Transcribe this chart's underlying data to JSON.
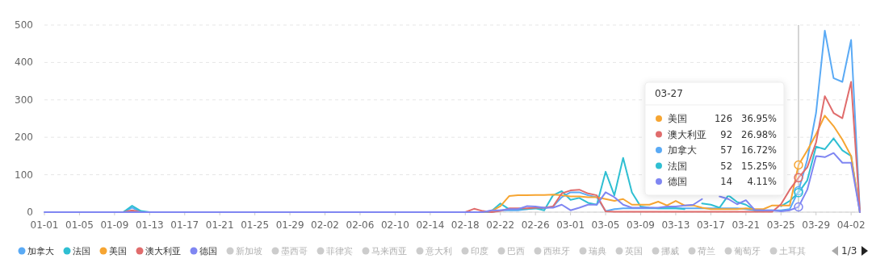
{
  "chart_data": {
    "type": "line",
    "x": [
      "--01-01",
      "--01-02",
      "--01-03",
      "--01-04",
      "--01-05",
      "--01-06",
      "--01-07",
      "--01-08",
      "--01-09",
      "--01-10",
      "--01-11",
      "--01-12",
      "--01-13",
      "--01-14",
      "--01-15",
      "--01-16",
      "--01-17",
      "--01-18",
      "--01-19",
      "--01-20",
      "--01-21",
      "--01-22",
      "--01-23",
      "--01-24",
      "--01-25",
      "--01-26",
      "--01-27",
      "--01-28",
      "--01-29",
      "--01-30",
      "--01-31",
      "--02-01",
      "--02-02",
      "--02-03",
      "--02-04",
      "--02-05",
      "--02-06",
      "--02-07",
      "--02-08",
      "--02-09",
      "--02-10",
      "--02-11",
      "--02-12",
      "--02-13",
      "--02-14",
      "--02-15",
      "--02-16",
      "--02-17",
      "--02-18",
      "--02-19",
      "--02-20",
      "--02-21",
      "--02-22",
      "--02-23",
      "--02-24",
      "--02-25",
      "--02-26",
      "--02-27",
      "--02-28",
      "--02-29",
      "--03-01",
      "--03-02",
      "--03-03",
      "--03-04",
      "--03-05",
      "--03-06",
      "--03-07",
      "--03-08",
      "--03-09",
      "--03-10",
      "--03-11",
      "--03-12",
      "--03-13",
      "--03-14",
      "--03-15",
      "--03-16",
      "--03-17",
      "--03-18",
      "--03-19",
      "--03-20",
      "--03-21",
      "--03-22",
      "--03-23",
      "--03-24",
      "--03-25",
      "--03-26",
      "--03-27",
      "--03-28",
      "--03-29",
      "--03-30",
      "--03-31",
      "--04-01",
      "--04-02",
      "--04-03"
    ],
    "xlim": [
      "--01-01",
      "--04-03"
    ],
    "xticks": [
      {
        "value": "--01-01",
        "label": "01-01"
      },
      {
        "value": "--01-05",
        "label": "01-05"
      },
      {
        "value": "--01-09",
        "label": "01-09"
      },
      {
        "value": "--01-13",
        "label": "01-13"
      },
      {
        "value": "--01-17",
        "label": "01-17"
      },
      {
        "value": "--01-21",
        "label": "01-21"
      },
      {
        "value": "--01-25",
        "label": "01-25"
      },
      {
        "value": "--01-29",
        "label": "01-29"
      },
      {
        "value": "--02-02",
        "label": "02-02"
      },
      {
        "value": "--02-06",
        "label": "02-06"
      },
      {
        "value": "--02-10",
        "label": "02-10"
      },
      {
        "value": "--02-14",
        "label": "02-14"
      },
      {
        "value": "--02-18",
        "label": "02-18"
      },
      {
        "value": "--02-22",
        "label": "02-22"
      },
      {
        "value": "--02-26",
        "label": "02-26"
      },
      {
        "value": "--03-01",
        "label": "03-01"
      },
      {
        "value": "--03-05",
        "label": "03-05"
      },
      {
        "value": "--03-09",
        "label": "03-09"
      },
      {
        "value": "--03-13",
        "label": "03-13"
      },
      {
        "value": "--03-17",
        "label": "03-17"
      },
      {
        "value": "--03-21",
        "label": "03-21"
      },
      {
        "value": "--03-25",
        "label": "03-25"
      },
      {
        "value": "--03-29",
        "label": "03-29"
      },
      {
        "value": "--04-02",
        "label": "04-02"
      }
    ],
    "series": [
      {
        "name": "加拿大",
        "color": "#5aaaf5",
        "values": [
          null,
          null,
          null,
          null,
          null,
          null,
          null,
          null,
          null,
          0,
          12,
          0,
          0,
          null,
          null,
          null,
          null,
          null,
          null,
          null,
          null,
          null,
          null,
          null,
          null,
          null,
          null,
          null,
          null,
          null,
          null,
          null,
          null,
          null,
          null,
          null,
          null,
          null,
          null,
          null,
          null,
          null,
          null,
          null,
          null,
          null,
          null,
          null,
          0,
          0,
          0,
          0,
          5,
          5,
          5,
          8,
          10,
          10,
          15,
          40,
          53,
          53,
          45,
          40,
          3,
          8,
          10,
          10,
          10,
          10,
          10,
          10,
          10,
          10,
          10,
          10,
          10,
          10,
          10,
          10,
          8,
          5,
          5,
          5,
          5,
          8,
          57,
          140,
          265,
          485,
          358,
          348,
          460,
          0
        ]
      },
      {
        "name": "法国",
        "color": "#2fbfd2",
        "values": [
          null,
          null,
          null,
          null,
          null,
          null,
          null,
          null,
          null,
          0,
          17,
          3,
          0,
          null,
          null,
          null,
          null,
          null,
          null,
          null,
          null,
          null,
          null,
          null,
          null,
          null,
          null,
          null,
          null,
          null,
          null,
          null,
          null,
          null,
          null,
          null,
          null,
          null,
          null,
          null,
          null,
          null,
          null,
          null,
          null,
          null,
          null,
          null,
          0,
          0,
          0,
          3,
          23,
          8,
          8,
          8,
          10,
          5,
          45,
          56,
          33,
          38,
          25,
          20,
          108,
          45,
          145,
          53,
          15,
          12,
          10,
          10,
          10,
          8,
          null,
          23,
          20,
          12,
          45,
          27,
          20,
          5,
          5,
          null,
          16,
          30,
          52,
          85,
          175,
          168,
          197,
          165,
          150,
          0
        ]
      },
      {
        "name": "美国",
        "color": "#f6a532",
        "values": [
          null,
          null,
          null,
          null,
          null,
          null,
          null,
          null,
          null,
          null,
          null,
          null,
          null,
          null,
          null,
          null,
          null,
          null,
          null,
          null,
          null,
          null,
          null,
          null,
          null,
          null,
          null,
          null,
          null,
          null,
          null,
          null,
          null,
          null,
          null,
          null,
          null,
          null,
          null,
          null,
          null,
          null,
          null,
          null,
          null,
          null,
          null,
          null,
          null,
          null,
          0,
          3,
          16,
          43,
          45,
          45,
          46,
          46,
          47,
          45,
          42,
          42,
          40,
          40,
          35,
          30,
          35,
          20,
          20,
          20,
          28,
          18,
          30,
          18,
          18,
          12,
          8,
          8,
          8,
          8,
          10,
          8,
          8,
          18,
          18,
          18,
          126,
          165,
          208,
          258,
          230,
          194,
          150,
          0
        ]
      },
      {
        "name": "澳大利亚",
        "color": "#e06c6c",
        "values": [
          null,
          null,
          null,
          null,
          null,
          null,
          null,
          null,
          null,
          0,
          5,
          0,
          null,
          null,
          null,
          null,
          null,
          null,
          null,
          null,
          null,
          null,
          null,
          null,
          null,
          null,
          null,
          null,
          null,
          null,
          null,
          null,
          null,
          null,
          null,
          null,
          null,
          null,
          null,
          null,
          null,
          null,
          null,
          null,
          null,
          null,
          null,
          null,
          0,
          9,
          3,
          0,
          3,
          10,
          10,
          10,
          12,
          12,
          15,
          50,
          58,
          60,
          50,
          45,
          2,
          1,
          1,
          1,
          1,
          1,
          1,
          1,
          1,
          1,
          1,
          1,
          1,
          1,
          1,
          1,
          1,
          1,
          1,
          1,
          21,
          60,
          92,
          120,
          186,
          310,
          265,
          251,
          348,
          0
        ]
      },
      {
        "name": "德国",
        "color": "#7f86f2",
        "values": [
          0,
          0,
          0,
          0,
          0,
          0,
          0,
          0,
          0,
          0,
          0,
          0,
          0,
          0,
          0,
          0,
          0,
          0,
          0,
          0,
          0,
          0,
          0,
          0,
          0,
          0,
          0,
          0,
          0,
          0,
          0,
          0,
          0,
          0,
          0,
          0,
          0,
          0,
          0,
          0,
          0,
          0,
          0,
          0,
          0,
          0,
          0,
          0,
          0,
          0,
          0,
          5,
          5,
          8,
          8,
          16,
          15,
          12,
          12,
          20,
          5,
          12,
          20,
          20,
          53,
          40,
          20,
          12,
          12,
          12,
          12,
          15,
          15,
          18,
          20,
          35,
          null,
          42,
          35,
          21,
          32,
          6,
          5,
          5,
          2,
          5,
          14,
          60,
          150,
          147,
          158,
          132,
          132,
          0
        ]
      }
    ],
    "ylim": [
      0,
      500
    ],
    "yticks": [
      0,
      100,
      200,
      300,
      400,
      500
    ],
    "grid": "y",
    "legend": "bottom",
    "marker": "none",
    "line_style": "solid",
    "ref_lines": [
      {
        "axis": "x",
        "value": "--03-27",
        "color": "#aaaaaa"
      }
    ],
    "annotations": [
      "03-27",
      "126",
      "36.95%",
      "92",
      "26.98%",
      "57",
      "16.72%",
      "52",
      "15.25%",
      "14",
      "4.11%",
      "新加坡",
      "墨西哥",
      "菲律宾",
      "马来西亚",
      "意大利",
      "印度",
      "巴西",
      "西班牙",
      "瑞典",
      "英国",
      "挪威",
      "荷兰",
      "葡萄牙",
      "土耳其",
      "1/3"
    ]
  }
}
